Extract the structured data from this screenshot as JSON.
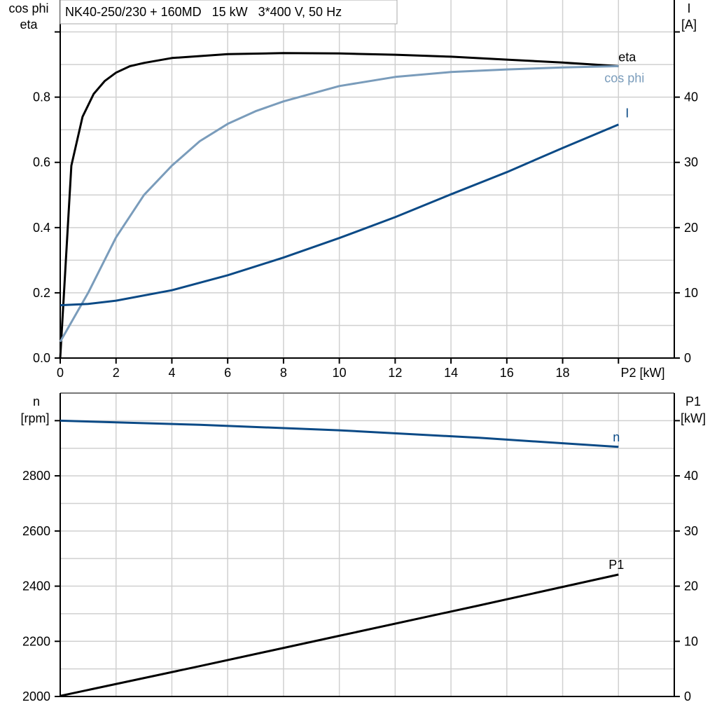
{
  "chart_data": [
    {
      "type": "line",
      "title": "NK40-250/230 + 160MD   15 kW   3*400 V, 50 Hz",
      "xlabel": "P2 [kW]",
      "ylabel_left": [
        "cos phi",
        "eta"
      ],
      "ylabel_right": [
        "I",
        "[A]"
      ],
      "xlim": [
        0,
        22
      ],
      "ylim_left": [
        0,
        1.1
      ],
      "ylim_right": [
        0,
        55
      ],
      "xticks": [
        "0",
        "2",
        "4",
        "6",
        "8",
        "10",
        "12",
        "14",
        "16",
        "18"
      ],
      "yticks_left": [
        "0.0",
        "0.2",
        "0.4",
        "0.6",
        "0.8"
      ],
      "yticks_right": [
        "0",
        "10",
        "20",
        "30",
        "40"
      ],
      "grid": true,
      "series": [
        {
          "name": "eta",
          "axis": "left",
          "color": "#000000",
          "x": [
            0,
            0.4,
            0.8,
            1.2,
            1.6,
            2,
            2.5,
            3,
            4,
            6,
            8,
            10,
            12,
            14,
            16,
            18,
            20
          ],
          "y": [
            0,
            0.59,
            0.74,
            0.81,
            0.85,
            0.875,
            0.895,
            0.905,
            0.92,
            0.932,
            0.935,
            0.934,
            0.93,
            0.924,
            0.915,
            0.906,
            0.895
          ]
        },
        {
          "name": "cos phi",
          "axis": "left",
          "color": "#7a9cbb",
          "x": [
            0,
            1,
            2,
            3,
            4,
            5,
            6,
            7,
            8,
            10,
            12,
            14,
            16,
            18,
            20
          ],
          "y": [
            0.05,
            0.2,
            0.37,
            0.5,
            0.59,
            0.665,
            0.718,
            0.757,
            0.787,
            0.834,
            0.862,
            0.877,
            0.885,
            0.891,
            0.895
          ]
        },
        {
          "name": "I",
          "axis": "right",
          "color": "#0b4a86",
          "x": [
            0,
            1,
            2,
            4,
            6,
            8,
            10,
            12,
            14,
            16,
            18,
            20
          ],
          "y": [
            8.1,
            8.3,
            8.8,
            10.4,
            12.7,
            15.4,
            18.4,
            21.6,
            25.1,
            28.5,
            32.2,
            35.8
          ]
        }
      ]
    },
    {
      "type": "line",
      "xlim": [
        0,
        22
      ],
      "ylabel_left": [
        "n",
        "[rpm]"
      ],
      "ylabel_right": [
        "P1",
        "[kW]"
      ],
      "ylim_left": [
        2000,
        3100
      ],
      "ylim_right": [
        0,
        55
      ],
      "yticks_left": [
        "2000",
        "2200",
        "2400",
        "2600",
        "2800"
      ],
      "yticks_right": [
        "0",
        "10",
        "20",
        "30",
        "40"
      ],
      "grid": true,
      "series": [
        {
          "name": "n",
          "axis": "left",
          "color": "#0b4a86",
          "x": [
            0,
            5,
            10,
            15,
            20
          ],
          "y": [
            3000,
            2985,
            2965,
            2938,
            2905
          ]
        },
        {
          "name": "P1",
          "axis": "right",
          "color": "#000000",
          "x": [
            0,
            5,
            10,
            15,
            20
          ],
          "y": [
            0.1,
            5.5,
            11,
            16.5,
            22.1
          ]
        }
      ]
    }
  ]
}
